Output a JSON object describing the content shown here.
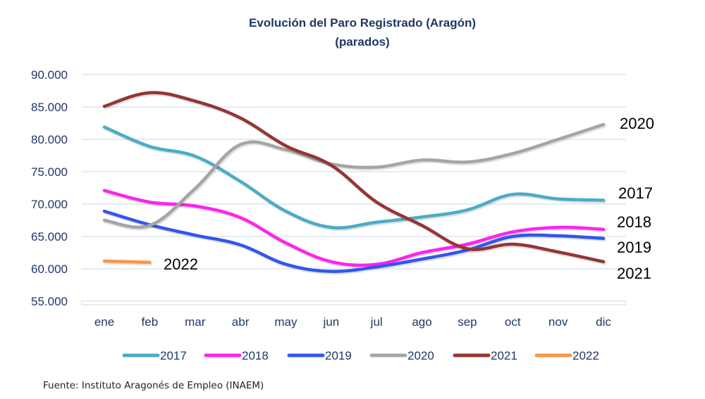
{
  "chart_data": {
    "type": "line",
    "title": "Evolución del Paro Registrado (Aragón)",
    "subtitle": "(parados)",
    "xlabel": "",
    "ylabel": "",
    "categories": [
      "ene",
      "feb",
      "mar",
      "abr",
      "may",
      "jun",
      "jul",
      "ago",
      "sep",
      "oct",
      "nov",
      "dic"
    ],
    "ylim": [
      55000,
      90000
    ],
    "yticks": [
      90000,
      85000,
      80000,
      75000,
      70000,
      65000,
      60000,
      55000
    ],
    "ytick_labels": [
      "90.000",
      "85.000",
      "80.000",
      "75.000",
      "70.000",
      "65.000",
      "60.000",
      "55.000"
    ],
    "grid": true,
    "legend_position": "bottom",
    "series": [
      {
        "name": "2017",
        "color": "#4bacc6",
        "values": [
          81900,
          78900,
          77400,
          73500,
          68900,
          66400,
          67200,
          68000,
          69100,
          71500,
          70800,
          70600
        ]
      },
      {
        "name": "2018",
        "color": "#ff22ee",
        "values": [
          72100,
          70300,
          69700,
          67900,
          64000,
          61100,
          60700,
          62500,
          63800,
          65700,
          66400,
          66100
        ]
      },
      {
        "name": "2019",
        "color": "#3355ee",
        "values": [
          68900,
          66800,
          65200,
          63700,
          60700,
          59600,
          60300,
          61500,
          62900,
          65000,
          65100,
          64700
        ]
      },
      {
        "name": "2020",
        "color": "#a5a5a5",
        "values": [
          67500,
          66700,
          72400,
          79200,
          78400,
          76200,
          75700,
          76800,
          76500,
          77800,
          80000,
          82300
        ]
      },
      {
        "name": "2021",
        "color": "#943634",
        "values": [
          85100,
          87200,
          85900,
          83300,
          79000,
          76000,
          70300,
          66700,
          63100,
          63800,
          62600,
          61100
        ]
      },
      {
        "name": "2022",
        "color": "#f79646",
        "values": [
          61200,
          61000
        ]
      }
    ],
    "annotations": [
      {
        "text": "2020",
        "series": "2020"
      },
      {
        "text": "2017",
        "series": "2017"
      },
      {
        "text": "2018",
        "series": "2018"
      },
      {
        "text": "2019",
        "series": "2019"
      },
      {
        "text": "2021",
        "series": "2021"
      },
      {
        "text": "2022",
        "series": "2022"
      }
    ]
  },
  "source": "Fuente: Instituto Aragonés de Empleo (INAEM)"
}
